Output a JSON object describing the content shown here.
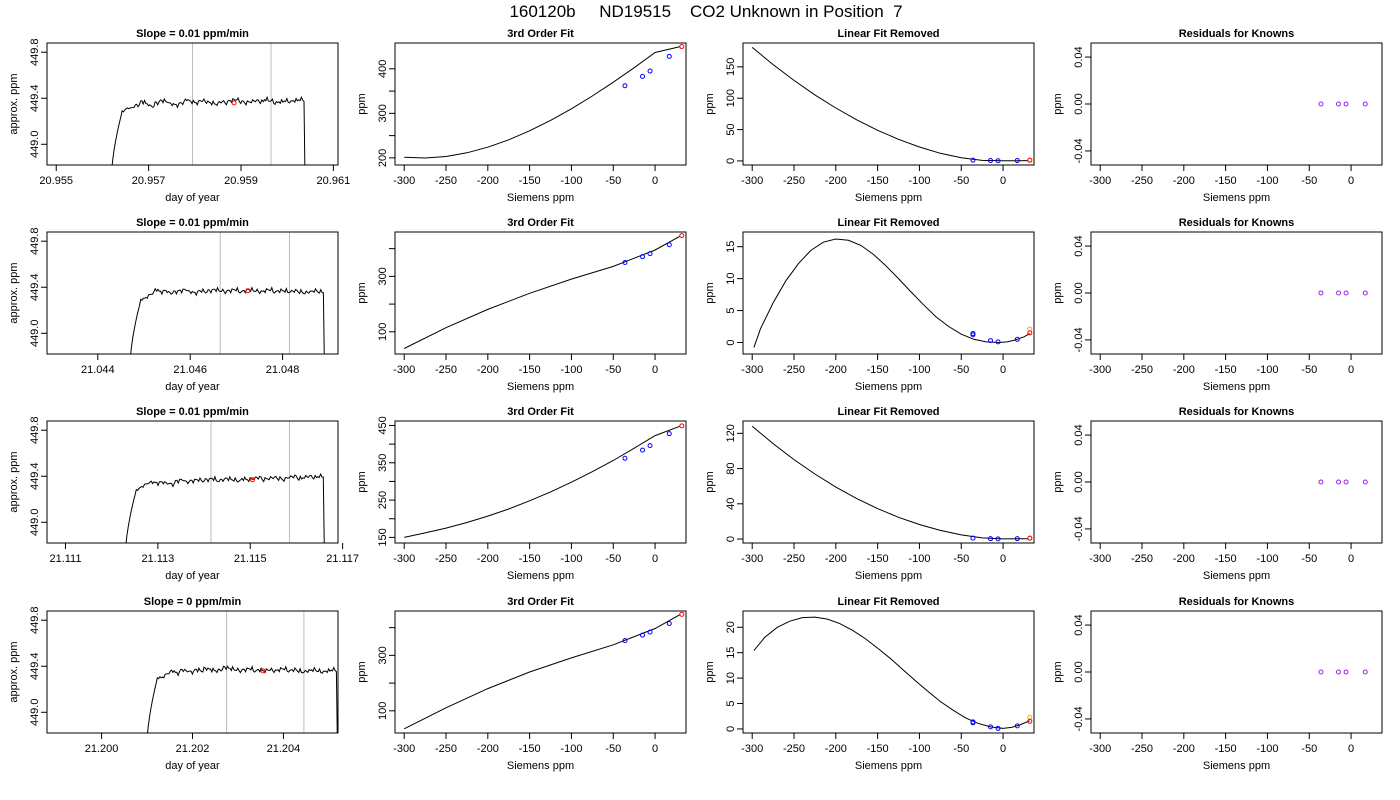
{
  "figure": {
    "title": "160120b     ND19515    CO2 Unknown in Position  7"
  },
  "chart_data": [
    {
      "row": 0,
      "kind": "timeseries",
      "type": "line",
      "title": "Slope =  0.01  ppm/min",
      "xlabel": "day of year",
      "ylabel": "approx. ppm",
      "xlim": [
        20.9548,
        20.9611
      ],
      "ylim": [
        448.82,
        449.88
      ],
      "xticks": [
        20.955,
        20.957,
        20.959,
        20.961
      ],
      "yticks": [
        449.0,
        449.4,
        449.8
      ],
      "x_start": 20.95617,
      "x_end": 20.96045,
      "plateau": 449.34,
      "vlines": [
        20.95795,
        20.95965
      ],
      "marker": {
        "x": 20.95885,
        "y": 449.36
      },
      "noise": [
        0.0,
        -0.02,
        0.01,
        0.02,
        -0.01,
        0.0,
        0.03,
        0.01,
        -0.01,
        0.02,
        0.04,
        0.03,
        0.01,
        0.0,
        0.02,
        0.05,
        0.03,
        0.02,
        0.04,
        0.03,
        0.02,
        0.01,
        0.03,
        0.02,
        0.04,
        0.05,
        0.03,
        0.02,
        0.03,
        0.04,
        0.03,
        0.05,
        0.04,
        0.02,
        0.03,
        0.04,
        0.03,
        0.04,
        0.05,
        0.04
      ]
    },
    {
      "row": 0,
      "kind": "fit",
      "type": "line",
      "title": "3rd Order Fit",
      "xlabel": "Siemens ppm",
      "ylabel": "ppm",
      "xlim": [
        -311,
        37
      ],
      "ylim": [
        184,
        458
      ],
      "xticks": [
        -300,
        -250,
        -200,
        -150,
        -100,
        -50,
        0
      ],
      "yticks": [
        200,
        300,
        400
      ],
      "yminor": [
        250,
        350
      ],
      "curve_x": [
        -300,
        -275,
        -250,
        -225,
        -200,
        -175,
        -150,
        -125,
        -100,
        -75,
        -50,
        -25,
        0,
        30
      ],
      "curve_y": [
        201.3,
        199.8,
        203.2,
        211.4,
        224.0,
        240.6,
        260.7,
        284.1,
        310.3,
        339.0,
        369.9,
        402.5,
        436.7,
        450.0
      ],
      "blue_x": [
        -36,
        -15,
        -6,
        17
      ],
      "blue_y": [
        362,
        383,
        395,
        428
      ],
      "red_x": [
        32
      ],
      "red_y": [
        450
      ]
    },
    {
      "row": 0,
      "kind": "residual",
      "type": "line",
      "title": "Linear Fit Removed",
      "xlabel": "Siemens ppm",
      "ylabel": "ppm",
      "xlim": [
        -311,
        37
      ],
      "ylim": [
        -6.5,
        188
      ],
      "xticks": [
        -300,
        -250,
        -200,
        -150,
        -100,
        -50,
        0
      ],
      "yticks": [
        0,
        50,
        100,
        150
      ],
      "curve_x": [
        -300,
        -275,
        -250,
        -225,
        -200,
        -175,
        -150,
        -125,
        -100,
        -75,
        -50,
        -25,
        0,
        30
      ],
      "curve_y": [
        181.0,
        153.6,
        128.3,
        105.3,
        84.4,
        65.5,
        48.9,
        34.4,
        22.2,
        12.2,
        4.9,
        0.8,
        0.2,
        0.5
      ],
      "blue_x": [
        -36,
        -15,
        -6,
        17
      ],
      "blue_y": [
        1.2,
        0.6,
        0.3,
        0.6
      ],
      "red_x": [
        32
      ],
      "red_y": [
        1.0
      ],
      "orange_x": [
        32
      ],
      "orange_y": [
        1.5
      ]
    },
    {
      "row": 0,
      "kind": "knowns",
      "type": "scatter",
      "title": "Residuals for Knowns",
      "xlabel": "Siemens ppm",
      "ylabel": "ppm",
      "xlim": [
        -311,
        37
      ],
      "ylim": [
        -0.052,
        0.052
      ],
      "xticks": [
        -300,
        -250,
        -200,
        -150,
        -100,
        -50,
        0
      ],
      "yticks": [
        -0.04,
        0.0,
        0.04
      ],
      "points_x": [
        -36,
        -15,
        -6,
        17
      ],
      "points_y": [
        0,
        0,
        0,
        0
      ]
    },
    {
      "row": 1,
      "kind": "timeseries",
      "type": "line",
      "title": "Slope =  0.01  ppm/min",
      "xlabel": "day of year",
      "ylabel": "approx. ppm",
      "xlim": [
        21.0429,
        21.0492
      ],
      "ylim": [
        448.82,
        449.88
      ],
      "xticks": [
        21.044,
        21.046,
        21.048
      ],
      "yticks": [
        449.0,
        449.4,
        449.8
      ],
      "x_start": 21.04467,
      "x_end": 21.04897,
      "plateau": 449.34,
      "vlines": [
        21.04665,
        21.04815
      ],
      "marker": {
        "x": 21.04725,
        "y": 449.37
      },
      "noise": [
        0.0,
        0.01,
        0.02,
        0.01,
        0.03,
        0.04,
        0.02,
        0.03,
        0.01,
        0.02,
        0.03,
        0.04,
        0.02,
        0.01,
        0.03,
        0.02,
        0.03,
        0.04,
        0.03,
        0.02,
        0.03,
        0.04,
        0.02,
        0.03,
        0.04,
        0.03,
        0.02,
        0.03,
        0.04,
        0.02,
        0.03,
        0.03,
        0.02,
        0.03,
        0.02,
        0.01,
        0.02,
        0.03,
        0.02,
        0.02
      ]
    },
    {
      "row": 1,
      "kind": "fit",
      "type": "line",
      "title": "3rd Order Fit",
      "xlabel": "Siemens ppm",
      "ylabel": "ppm",
      "xlim": [
        -311,
        37
      ],
      "ylim": [
        20,
        460
      ],
      "xticks": [
        -300,
        -250,
        -200,
        -150,
        -100,
        -50,
        0
      ],
      "yticks": [
        100,
        300
      ],
      "yminor": [
        200,
        400
      ],
      "curve_x": [
        -300,
        -250,
        -200,
        -150,
        -100,
        -50,
        0,
        30
      ],
      "curve_y": [
        40,
        115,
        181,
        239,
        290,
        336,
        395,
        445
      ],
      "blue_x": [
        -36,
        -15,
        -6,
        17
      ],
      "blue_y": [
        350,
        371,
        382,
        414
      ],
      "red_x": [
        32
      ],
      "red_y": [
        447
      ]
    },
    {
      "row": 1,
      "kind": "residual",
      "type": "line",
      "title": "Linear Fit Removed",
      "xlabel": "Siemens ppm",
      "ylabel": "ppm",
      "xlim": [
        -311,
        37
      ],
      "ylim": [
        -1.8,
        17.3
      ],
      "xticks": [
        -300,
        -250,
        -200,
        -150,
        -100,
        -50,
        0
      ],
      "yticks": [
        0,
        5,
        10,
        15
      ],
      "curve_x": [
        -298,
        -290,
        -275,
        -260,
        -245,
        -230,
        -215,
        -200,
        -185,
        -170,
        -155,
        -140,
        -125,
        -110,
        -95,
        -80,
        -65,
        -50,
        -35,
        -20,
        -5,
        5,
        15,
        25,
        32
      ],
      "curve_y": [
        -0.8,
        2.2,
        6.2,
        9.6,
        12.3,
        14.4,
        15.7,
        16.2,
        16.0,
        15.2,
        13.8,
        12.0,
        10.0,
        7.9,
        5.9,
        4.0,
        2.5,
        1.3,
        0.5,
        0.1,
        0.0,
        0.1,
        0.4,
        0.9,
        1.4
      ],
      "blue_x": [
        -36,
        -36,
        -15,
        -6,
        17
      ],
      "blue_y": [
        1.4,
        1.2,
        0.3,
        0.1,
        0.5
      ],
      "red_x": [
        32
      ],
      "red_y": [
        1.5
      ],
      "orange_x": [
        32
      ],
      "orange_y": [
        2.1
      ]
    },
    {
      "row": 1,
      "kind": "knowns",
      "type": "scatter",
      "title": "Residuals for Knowns",
      "xlabel": "Siemens ppm",
      "ylabel": "ppm",
      "xlim": [
        -311,
        37
      ],
      "ylim": [
        -0.052,
        0.052
      ],
      "xticks": [
        -300,
        -250,
        -200,
        -150,
        -100,
        -50,
        0
      ],
      "yticks": [
        -0.04,
        0.0,
        0.04
      ],
      "points_x": [
        -36,
        -15,
        -6,
        17
      ],
      "points_y": [
        0,
        0,
        0,
        0
      ]
    },
    {
      "row": 2,
      "kind": "timeseries",
      "type": "line",
      "title": "Slope =  0.01  ppm/min",
      "xlabel": "day of year",
      "ylabel": "approx. ppm",
      "xlim": [
        21.1106,
        21.1169
      ],
      "ylim": [
        448.82,
        449.88
      ],
      "xticks": [
        21.111,
        21.113,
        21.115,
        21.117
      ],
      "yticks": [
        449.0,
        449.4,
        449.8
      ],
      "x_start": 21.11227,
      "x_end": 21.11667,
      "plateau": 449.34,
      "vlines": [
        21.11415,
        21.11585
      ],
      "marker": {
        "x": 21.11505,
        "y": 449.37
      },
      "noise": [
        0.0,
        0.01,
        0.0,
        0.01,
        0.02,
        0.01,
        0.0,
        0.01,
        0.0,
        -0.01,
        0.02,
        0.03,
        0.01,
        0.02,
        0.03,
        0.02,
        0.03,
        0.04,
        0.02,
        0.03,
        0.04,
        0.03,
        0.02,
        0.04,
        0.03,
        0.04,
        0.05,
        0.03,
        0.04,
        0.05,
        0.04,
        0.03,
        0.05,
        0.06,
        0.04,
        0.05,
        0.06,
        0.05,
        0.06,
        0.06
      ]
    },
    {
      "row": 2,
      "kind": "fit",
      "type": "line",
      "title": "3rd Order Fit",
      "xlabel": "Siemens ppm",
      "ylabel": "ppm",
      "xlim": [
        -311,
        37
      ],
      "ylim": [
        135,
        462
      ],
      "xticks": [
        -300,
        -250,
        -200,
        -150,
        -100,
        -50,
        0
      ],
      "yticks": [
        150,
        250,
        350,
        450
      ],
      "yminor": [
        200,
        300,
        400
      ],
      "curve_x": [
        -300,
        -275,
        -250,
        -225,
        -200,
        -175,
        -150,
        -125,
        -100,
        -75,
        -50,
        -25,
        0,
        30
      ],
      "curve_y": [
        150,
        162,
        175,
        190,
        207,
        226,
        248,
        272,
        298,
        326,
        356,
        389,
        423,
        448
      ],
      "blue_x": [
        -36,
        -15,
        -6,
        17
      ],
      "blue_y": [
        362,
        384,
        396,
        428
      ],
      "red_x": [
        32
      ],
      "red_y": [
        449
      ]
    },
    {
      "row": 2,
      "kind": "residual",
      "type": "line",
      "title": "Linear Fit Removed",
      "xlabel": "Siemens ppm",
      "ylabel": "ppm",
      "xlim": [
        -311,
        37
      ],
      "ylim": [
        -4.5,
        134
      ],
      "xticks": [
        -300,
        -250,
        -200,
        -150,
        -100,
        -50,
        0
      ],
      "yticks": [
        0,
        40,
        80,
        120
      ],
      "curve_x": [
        -300,
        -275,
        -250,
        -225,
        -200,
        -175,
        -150,
        -125,
        -100,
        -75,
        -50,
        -25,
        0,
        30
      ],
      "curve_y": [
        128.0,
        108.4,
        90.2,
        73.8,
        59.0,
        45.9,
        34.5,
        24.7,
        16.5,
        9.8,
        4.7,
        1.3,
        0.1,
        0.4
      ],
      "blue_x": [
        -36,
        -15,
        -6,
        17
      ],
      "blue_y": [
        1.0,
        0.4,
        0.2,
        0.4
      ],
      "red_x": [
        32
      ],
      "red_y": [
        0.9
      ],
      "orange_x": [
        32
      ],
      "orange_y": [
        1.3
      ]
    },
    {
      "row": 2,
      "kind": "knowns",
      "type": "scatter",
      "title": "Residuals for Knowns",
      "xlabel": "Siemens ppm",
      "ylabel": "ppm",
      "xlim": [
        -311,
        37
      ],
      "ylim": [
        -0.052,
        0.052
      ],
      "xticks": [
        -300,
        -250,
        -200,
        -150,
        -100,
        -50,
        0
      ],
      "yticks": [
        -0.04,
        0.0,
        0.04
      ],
      "points_x": [
        -36,
        -15,
        -6,
        17
      ],
      "points_y": [
        0,
        0,
        0,
        0
      ]
    },
    {
      "row": 3,
      "kind": "timeseries",
      "type": "line",
      "title": "Slope =  0  ppm/min",
      "xlabel": "day of year",
      "ylabel": "approx. ppm",
      "xlim": [
        21.1988,
        21.2052
      ],
      "ylim": [
        448.82,
        449.88
      ],
      "xticks": [
        21.2,
        21.202,
        21.204
      ],
      "yticks": [
        449.0,
        449.4,
        449.8
      ],
      "x_start": 21.20097,
      "x_end": 21.20525,
      "plateau": 449.35,
      "vlines": [
        21.20275,
        21.20445
      ],
      "marker": {
        "x": 21.20355,
        "y": 449.36
      },
      "noise": [
        0.0,
        -0.01,
        0.01,
        -0.02,
        0.0,
        0.01,
        -0.01,
        0.02,
        0.01,
        0.0,
        0.02,
        0.01,
        0.03,
        0.02,
        0.01,
        0.02,
        0.04,
        0.03,
        0.02,
        0.01,
        0.02,
        0.03,
        0.01,
        0.02,
        0.01,
        0.02,
        0.01,
        0.02,
        0.03,
        0.01,
        0.02,
        0.01,
        0.0,
        0.01,
        0.02,
        0.01,
        0.0,
        0.01,
        0.02,
        0.01
      ]
    },
    {
      "row": 3,
      "kind": "fit",
      "type": "line",
      "title": "3rd Order Fit",
      "xlabel": "Siemens ppm",
      "ylabel": "ppm",
      "xlim": [
        -311,
        37
      ],
      "ylim": [
        20,
        460
      ],
      "xticks": [
        -300,
        -250,
        -200,
        -150,
        -100,
        -50,
        0
      ],
      "yticks": [
        100,
        300
      ],
      "yminor": [
        200,
        400
      ],
      "curve_x": [
        -300,
        -250,
        -200,
        -150,
        -100,
        -50,
        0,
        30
      ],
      "curve_y": [
        35,
        111,
        180,
        240,
        291,
        338,
        397,
        447
      ],
      "blue_x": [
        -36,
        -15,
        -6,
        17
      ],
      "blue_y": [
        353,
        373,
        384,
        415
      ],
      "red_x": [
        32
      ],
      "red_y": [
        448
      ]
    },
    {
      "row": 3,
      "kind": "residual",
      "type": "line",
      "title": "Linear Fit Removed",
      "xlabel": "Siemens ppm",
      "ylabel": "ppm",
      "xlim": [
        -311,
        37
      ],
      "ylim": [
        -0.8,
        23.2
      ],
      "xticks": [
        -300,
        -250,
        -200,
        -150,
        -100,
        -50,
        0
      ],
      "yticks": [
        0,
        5,
        10,
        15,
        20
      ],
      "curve_x": [
        -298,
        -285,
        -270,
        -255,
        -240,
        -225,
        -210,
        -195,
        -180,
        -165,
        -150,
        -135,
        -120,
        -105,
        -90,
        -75,
        -60,
        -45,
        -30,
        -15,
        0,
        10,
        20,
        32
      ],
      "curve_y": [
        15.4,
        18.0,
        20.0,
        21.2,
        21.9,
        22.0,
        21.6,
        20.7,
        19.4,
        17.8,
        15.9,
        13.9,
        11.7,
        9.5,
        7.4,
        5.4,
        3.7,
        2.2,
        1.1,
        0.4,
        0.1,
        0.3,
        0.8,
        1.6
      ],
      "blue_x": [
        -36,
        -36,
        -15,
        -6,
        17
      ],
      "blue_y": [
        1.4,
        1.2,
        0.4,
        0.1,
        0.6
      ],
      "red_x": [
        32
      ],
      "red_y": [
        1.5
      ],
      "orange_x": [
        32
      ],
      "orange_y": [
        2.3
      ]
    },
    {
      "row": 3,
      "kind": "knowns",
      "type": "scatter",
      "title": "Residuals for Knowns",
      "xlabel": "Siemens ppm",
      "ylabel": "ppm",
      "xlim": [
        -311,
        37
      ],
      "ylim": [
        -0.052,
        0.052
      ],
      "xticks": [
        -300,
        -250,
        -200,
        -150,
        -100,
        -50,
        0
      ],
      "yticks": [
        -0.04,
        0.0,
        0.04
      ],
      "points_x": [
        -36,
        -15,
        -6,
        17
      ],
      "points_y": [
        0,
        0,
        0,
        0
      ]
    }
  ]
}
